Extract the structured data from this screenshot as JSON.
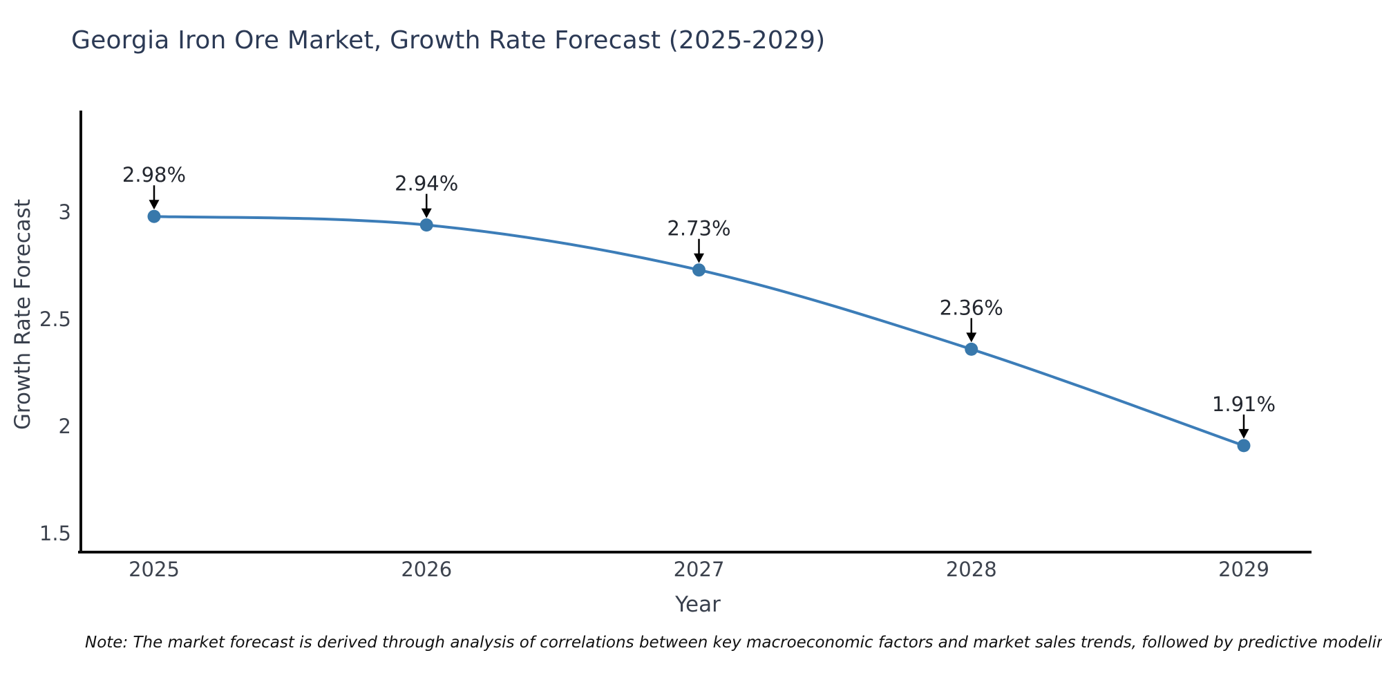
{
  "title": "Georgia Iron Ore Market, Growth Rate Forecast (2025-2029)",
  "note": "Note: The market forecast is derived through analysis of correlations between key macroeconomic factors and market sales trends, followed by predictive modeling to project future sales",
  "chart_data": {
    "type": "line",
    "title": "Georgia Iron Ore Market, Growth Rate Forecast (2025-2029)",
    "xlabel": "Year",
    "ylabel": "Growth Rate Forecast",
    "x": [
      2025,
      2026,
      2027,
      2028,
      2029
    ],
    "series": [
      {
        "name": "Growth Rate Forecast",
        "values": [
          2.98,
          2.94,
          2.73,
          2.36,
          1.91
        ]
      }
    ],
    "point_labels": [
      "2.98%",
      "2.94%",
      "2.73%",
      "2.36%",
      "1.91%"
    ],
    "xticks": [
      "2025",
      "2026",
      "2027",
      "2028",
      "2029"
    ],
    "yticks": [
      1.5,
      2,
      2.5,
      3
    ],
    "ylim": [
      1.41,
      3.47
    ],
    "xlim": [
      2024.73,
      2029.25
    ],
    "line_shape": "spline",
    "grid": false,
    "legend": "none",
    "annotation_arrows": true,
    "colors": {
      "line": "#3c7db8",
      "marker": "#3878ab",
      "axis": "#0d0d0d",
      "arrow": "#000000",
      "title": "#2c3a55",
      "axis_label": "#39404d",
      "tick_label": "#3d434e",
      "annotation": "#23272f",
      "note": "#111111",
      "background": "#ffffff"
    }
  }
}
